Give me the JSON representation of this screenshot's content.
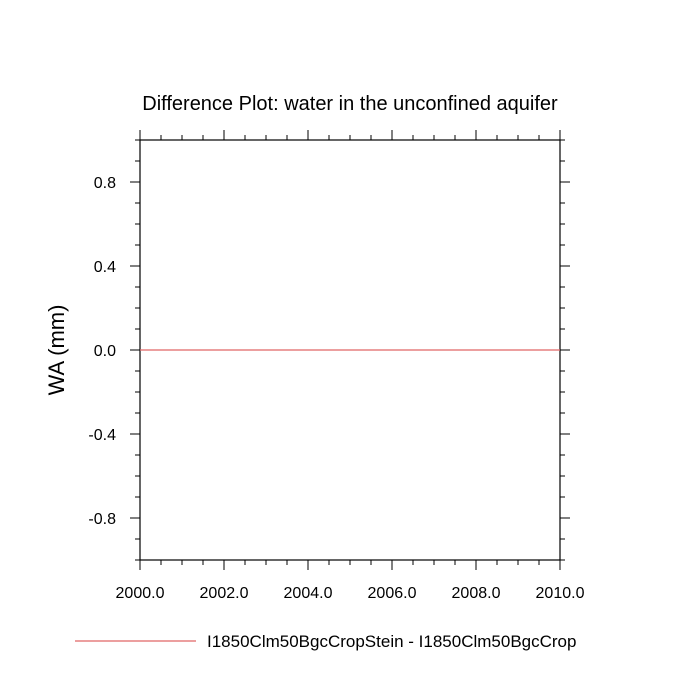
{
  "chart_data": {
    "type": "line",
    "title": "Difference Plot: water in the unconfined aquifer",
    "xlabel": "",
    "ylabel": "WA  (mm)",
    "xlim": [
      2000,
      2010
    ],
    "ylim": [
      -1.0,
      1.0
    ],
    "x_ticks": [
      2000,
      2002,
      2004,
      2006,
      2008,
      2010
    ],
    "x_tick_labels": [
      "2000.0",
      "2002.0",
      "2004.0",
      "2006.0",
      "2008.0",
      "2010.0"
    ],
    "y_ticks": [
      0.8,
      0.4,
      0.0,
      -0.4,
      -0.8
    ],
    "y_tick_labels": [
      "0.8",
      "0.4",
      "0.0",
      "-0.4",
      "-0.8"
    ],
    "grid": false,
    "legend_position": "bottom",
    "series": [
      {
        "name": "I1850Clm50BgcCropStein - I1850Clm50BgcCrop",
        "color": "#e06666",
        "x": [
          2000,
          2010
        ],
        "y": [
          0.0,
          0.0
        ]
      }
    ]
  }
}
